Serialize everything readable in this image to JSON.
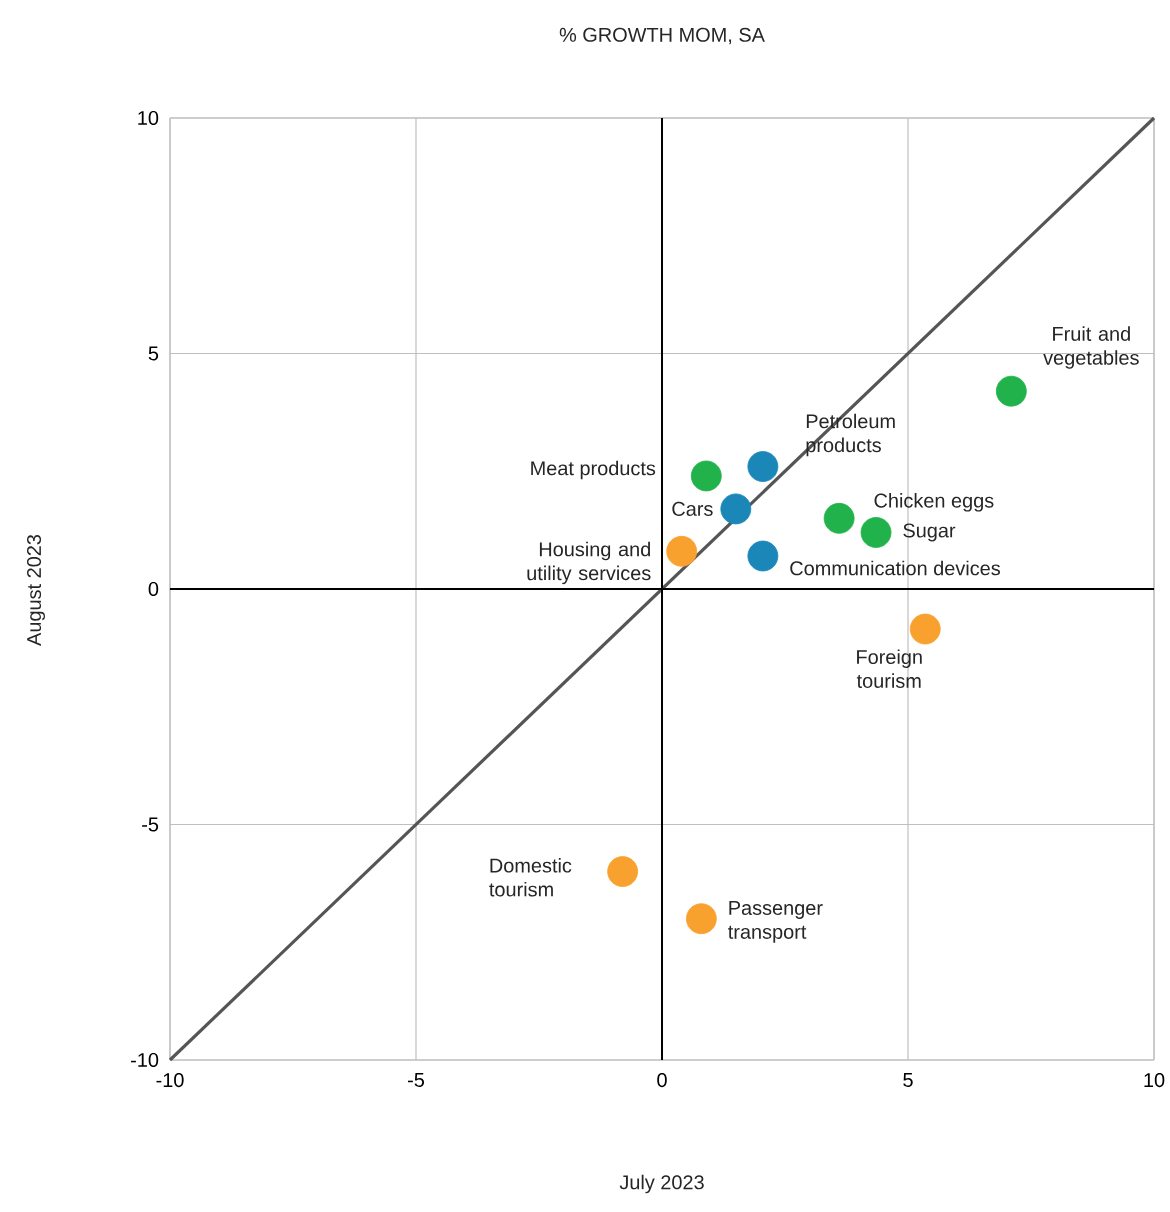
{
  "chart_data": {
    "type": "scatter",
    "title": "% GROWTH MOM, SA",
    "xlabel": "July 2023",
    "ylabel": "August 2023",
    "xlim": [
      -10,
      10
    ],
    "ylim": [
      -10,
      10
    ],
    "xticks": [
      -10,
      -5,
      0,
      5,
      10
    ],
    "yticks": [
      -10,
      -5,
      0,
      5,
      10
    ],
    "grid": true,
    "marker": "circle",
    "series": [
      {
        "color": "#22b24c",
        "x": [
          7.1,
          0.9,
          3.6,
          4.35
        ],
        "values": [
          4.2,
          2.4,
          1.5,
          1.2
        ]
      },
      {
        "color": "#1b87b9",
        "x": [
          2.05,
          1.5,
          2.05
        ],
        "values": [
          2.6,
          1.7,
          0.7
        ]
      },
      {
        "color": "#f9a12e",
        "x": [
          0.4,
          5.35,
          -0.8,
          0.8
        ],
        "values": [
          0.8,
          -0.85,
          -6.0,
          -7.0
        ]
      },
      {
        "type": "line",
        "color": "#555555",
        "marker": "none",
        "x": [
          -10,
          10
        ],
        "values": [
          -10,
          10
        ]
      }
    ],
    "annotations": [
      {
        "text": "Fruit and vegetables",
        "x": 7.1,
        "y": 4.2
      },
      {
        "text": "Meat products",
        "x": 0.9,
        "y": 2.4
      },
      {
        "text": "Petroleum products",
        "x": 2.05,
        "y": 2.6
      },
      {
        "text": "Cars",
        "x": 1.5,
        "y": 1.7
      },
      {
        "text": "Chicken eggs",
        "x": 3.6,
        "y": 1.5
      },
      {
        "text": "Sugar",
        "x": 4.35,
        "y": 1.2
      },
      {
        "text": "Communication devices",
        "x": 2.05,
        "y": 0.7
      },
      {
        "text": "Housing and utility services",
        "x": 0.4,
        "y": 0.8
      },
      {
        "text": "Foreign tourism",
        "x": 5.35,
        "y": -0.85
      },
      {
        "text": "Domestic tourism",
        "x": -0.8,
        "y": -6.0
      },
      {
        "text": "Passenger transport",
        "x": 0.8,
        "y": -7.0
      }
    ]
  }
}
